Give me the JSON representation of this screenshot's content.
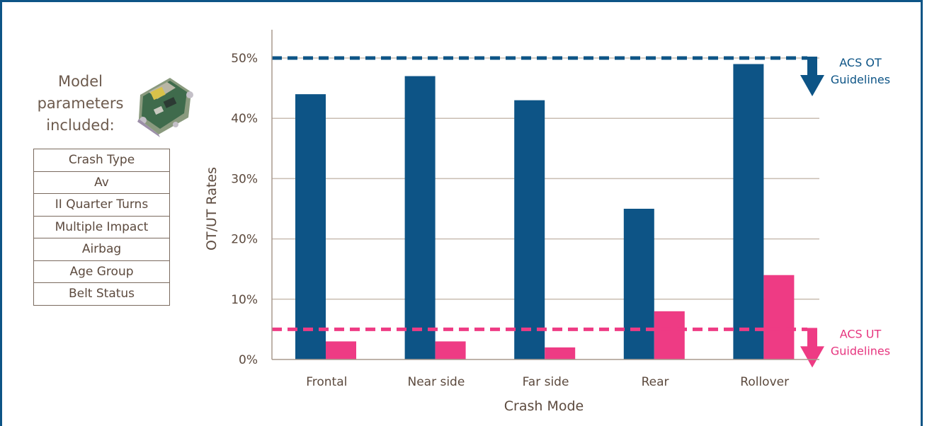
{
  "colors": {
    "ot": "#0d5486",
    "ut": "#ee3b84",
    "frame": "#0d5486",
    "text": "#5c4a3e"
  },
  "sidebar": {
    "title_lines": [
      "Model",
      "parameters",
      "included:"
    ],
    "image_icon": "airbag-control-module-icon",
    "parameters": [
      "Crash Type",
      "Av",
      "II Quarter Turns",
      "Multiple Impact",
      "Airbag",
      "Age Group",
      "Belt Status"
    ]
  },
  "chart_data": {
    "type": "bar",
    "categories": [
      "Frontal",
      "Near side",
      "Far side",
      "Rear",
      "Rollover"
    ],
    "series": [
      {
        "color": "#0d5486",
        "values": [
          44,
          47,
          43,
          25,
          49
        ]
      },
      {
        "color": "#ee3b84",
        "values": [
          3,
          3,
          2,
          8,
          14
        ]
      }
    ],
    "ylim": [
      0,
      50
    ],
    "yticks": [
      "0%",
      "10%",
      "20%",
      "30%",
      "40%",
      "50%"
    ],
    "ytick_values": [
      0,
      10,
      20,
      30,
      40,
      50
    ],
    "xlabel": "Crash Mode",
    "ylabel": "OT/UT Rates",
    "grid": true,
    "reference_lines": [
      {
        "value": 50,
        "label_lines": [
          "ACS OT",
          "Guidelines"
        ],
        "color": "#0d5486",
        "style": "dashed",
        "arrow": "down"
      },
      {
        "value": 5,
        "label_lines": [
          "ACS UT",
          "Guidelines"
        ],
        "color": "#ee3b84",
        "style": "dashed",
        "arrow": "down"
      }
    ]
  }
}
